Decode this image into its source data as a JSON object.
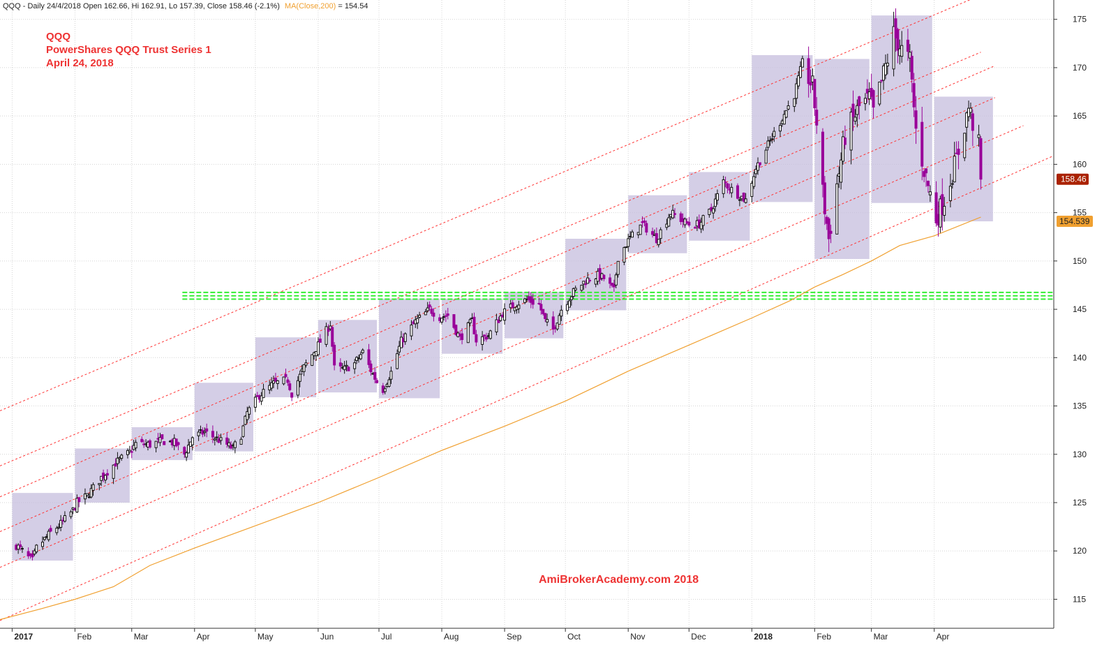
{
  "header": {
    "info": "QQQ - Daily 24/4/2018 Open 162.66, Hi 162.91, Lo 157.39, Close 158.46 (-2.1%)",
    "ma_label": "MA(Close,200)",
    "ma_value": " = 154.54"
  },
  "title": {
    "line1": "QQQ",
    "line2": "PowerShares QQQ Trust Series 1",
    "line3": "April 24, 2018"
  },
  "watermark": "AmiBrokerAcademy.com  2018",
  "badges": {
    "close": "158.46",
    "ma": "154.539"
  },
  "colors": {
    "up_candle": "#111111",
    "down_candle": "#990099",
    "channel": "#ff3333",
    "ma": "#f0a030",
    "support": "#33ee33",
    "box_fill": "#c6bedd",
    "close_badge": "#aa2200",
    "ma_badge": "#f0a030"
  },
  "chart_data": {
    "type": "candlestick",
    "symbol": "QQQ",
    "interval": "Daily",
    "ylim": [
      112,
      177
    ],
    "yticks": [
      115,
      120,
      125,
      130,
      135,
      140,
      145,
      150,
      155,
      160,
      165,
      170,
      175
    ],
    "xlim": [
      "2016-12-26",
      "2018-05-30"
    ],
    "months": [
      {
        "label": "2017",
        "date": "2017-01-01",
        "bold": true
      },
      {
        "label": "Feb",
        "date": "2017-02-01"
      },
      {
        "label": "Mar",
        "date": "2017-03-01"
      },
      {
        "label": "Apr",
        "date": "2017-04-01"
      },
      {
        "label": "May",
        "date": "2017-05-01"
      },
      {
        "label": "Jun",
        "date": "2017-06-01"
      },
      {
        "label": "Jul",
        "date": "2017-07-01"
      },
      {
        "label": "Aug",
        "date": "2017-08-01"
      },
      {
        "label": "Sep",
        "date": "2017-09-01"
      },
      {
        "label": "Oct",
        "date": "2017-10-01"
      },
      {
        "label": "Nov",
        "date": "2017-11-01"
      },
      {
        "label": "Dec",
        "date": "2017-12-01"
      },
      {
        "label": "2018",
        "date": "2018-01-01",
        "bold": true
      },
      {
        "label": "Feb",
        "date": "2018-02-01"
      },
      {
        "label": "Mar",
        "date": "2018-03-01"
      },
      {
        "label": "Apr",
        "date": "2018-04-01"
      }
    ],
    "monthly_ranges": [
      {
        "start": "2017-01-01",
        "end": "2017-01-31",
        "low": 119,
        "high": 126
      },
      {
        "start": "2017-02-01",
        "end": "2017-02-28",
        "low": 125,
        "high": 130.6
      },
      {
        "start": "2017-03-01",
        "end": "2017-03-31",
        "low": 129.4,
        "high": 132.8
      },
      {
        "start": "2017-04-01",
        "end": "2017-04-30",
        "low": 130.3,
        "high": 137.4
      },
      {
        "start": "2017-05-01",
        "end": "2017-05-31",
        "low": 135.9,
        "high": 142.1
      },
      {
        "start": "2017-06-01",
        "end": "2017-06-30",
        "low": 136.4,
        "high": 143.9
      },
      {
        "start": "2017-07-01",
        "end": "2017-07-31",
        "low": 135.8,
        "high": 146.1
      },
      {
        "start": "2017-08-01",
        "end": "2017-08-31",
        "low": 140.4,
        "high": 146.1
      },
      {
        "start": "2017-09-01",
        "end": "2017-09-30",
        "low": 142,
        "high": 146.8
      },
      {
        "start": "2017-10-01",
        "end": "2017-10-31",
        "low": 144.9,
        "high": 152.3
      },
      {
        "start": "2017-11-01",
        "end": "2017-11-30",
        "low": 150.8,
        "high": 156.8
      },
      {
        "start": "2017-12-01",
        "end": "2017-12-31",
        "low": 152.1,
        "high": 159.2
      },
      {
        "start": "2018-01-01",
        "end": "2018-01-31",
        "low": 156.1,
        "high": 171.3
      },
      {
        "start": "2018-02-01",
        "end": "2018-02-28",
        "low": 150.2,
        "high": 170.9
      },
      {
        "start": "2018-03-01",
        "end": "2018-03-31",
        "low": 156,
        "high": 175.4
      },
      {
        "start": "2018-04-01",
        "end": "2018-04-30",
        "low": 154.1,
        "high": 167
      }
    ],
    "channel_lines": [
      {
        "start": [
          "2016-12-26",
          134.5
        ],
        "end": [
          "2018-04-24",
          177.5
        ]
      },
      {
        "start": [
          "2016-12-26",
          128.8
        ],
        "end": [
          "2018-04-24",
          171.6
        ]
      },
      {
        "start": [
          "2016-12-26",
          125.6
        ],
        "end": [
          "2018-05-01",
          170.2
        ]
      },
      {
        "start": [
          "2016-12-26",
          122
        ],
        "end": [
          "2018-05-01",
          166.9
        ]
      },
      {
        "start": [
          "2016-12-26",
          118.3
        ],
        "end": [
          "2018-05-15",
          164
        ]
      },
      {
        "start": [
          "2016-12-26",
          112.8
        ],
        "end": [
          "2018-05-29",
          160.8
        ]
      }
    ],
    "support_level": {
      "value": 146.4,
      "start": "2017-03-26",
      "end": "2018-05-30"
    },
    "ma200": {
      "name": "MA(Close,200)",
      "points": [
        [
          "2016-12-26",
          112.9
        ],
        [
          "2017-01-15",
          114
        ],
        [
          "2017-02-01",
          115
        ],
        [
          "2017-02-20",
          116.3
        ],
        [
          "2017-03-10",
          118.5
        ],
        [
          "2017-04-01",
          120.3
        ],
        [
          "2017-05-01",
          122.6
        ],
        [
          "2017-06-01",
          125
        ],
        [
          "2017-07-01",
          127.6
        ],
        [
          "2017-08-01",
          130.4
        ],
        [
          "2017-09-01",
          132.9
        ],
        [
          "2017-10-01",
          135.5
        ],
        [
          "2017-11-01",
          138.6
        ],
        [
          "2017-12-01",
          141.3
        ],
        [
          "2018-01-01",
          144.1
        ],
        [
          "2018-01-20",
          145.9
        ],
        [
          "2018-02-01",
          147.3
        ],
        [
          "2018-02-15",
          148.6
        ],
        [
          "2018-03-01",
          150
        ],
        [
          "2018-03-15",
          151.6
        ],
        [
          "2018-04-01",
          152.6
        ],
        [
          "2018-04-24",
          154.54
        ]
      ]
    },
    "last": {
      "date": "2018-04-24",
      "open": 162.66,
      "high": 162.91,
      "low": 157.39,
      "close": 158.46,
      "change_pct": -2.1,
      "ma200": 154.54
    },
    "close_path": [
      [
        "2017-01-03",
        120.6
      ],
      [
        "2017-01-05",
        120.2
      ],
      [
        "2017-01-09",
        119.3
      ],
      [
        "2017-01-11",
        119.0
      ],
      [
        "2017-01-13",
        120.3
      ],
      [
        "2017-01-17",
        121.2
      ],
      [
        "2017-01-20",
        121.9
      ],
      [
        "2017-01-25",
        122.8
      ],
      [
        "2017-01-31",
        124.2
      ],
      [
        "2017-02-02",
        125.0
      ],
      [
        "2017-02-07",
        125.7
      ],
      [
        "2017-02-14",
        127.6
      ],
      [
        "2017-02-21",
        129.1
      ],
      [
        "2017-02-28",
        130.2
      ],
      [
        "2017-03-03",
        131.1
      ],
      [
        "2017-03-10",
        131.0
      ],
      [
        "2017-03-16",
        131.4
      ],
      [
        "2017-03-22",
        131.2
      ],
      [
        "2017-03-27",
        130.0
      ],
      [
        "2017-03-31",
        131.8
      ],
      [
        "2017-04-06",
        132.3
      ],
      [
        "2017-04-12",
        131.6
      ],
      [
        "2017-04-17",
        131.0
      ],
      [
        "2017-04-20",
        130.6
      ],
      [
        "2017-04-24",
        132.0
      ],
      [
        "2017-04-27",
        134.3
      ],
      [
        "2017-05-03",
        136.1
      ],
      [
        "2017-05-10",
        137.3
      ],
      [
        "2017-05-17",
        137.7
      ],
      [
        "2017-05-19",
        136.3
      ],
      [
        "2017-05-25",
        139.0
      ],
      [
        "2017-06-01",
        141.3
      ],
      [
        "2017-06-07",
        143.5
      ],
      [
        "2017-06-09",
        138.9
      ],
      [
        "2017-06-14",
        138.8
      ],
      [
        "2017-06-19",
        139.4
      ],
      [
        "2017-06-23",
        140.6
      ],
      [
        "2017-06-27",
        138.7
      ],
      [
        "2017-06-30",
        137.5
      ],
      [
        "2017-07-03",
        136.7
      ],
      [
        "2017-07-07",
        138.5
      ],
      [
        "2017-07-12",
        141.7
      ],
      [
        "2017-07-19",
        143.7
      ],
      [
        "2017-07-26",
        145.0
      ],
      [
        "2017-07-31",
        144.2
      ],
      [
        "2017-08-04",
        144.4
      ],
      [
        "2017-08-10",
        142.0
      ],
      [
        "2017-08-16",
        143.8
      ],
      [
        "2017-08-18",
        141.8
      ],
      [
        "2017-08-24",
        142.3
      ],
      [
        "2017-08-31",
        144.6
      ],
      [
        "2017-09-06",
        145.5
      ],
      [
        "2017-09-12",
        146.0
      ],
      [
        "2017-09-18",
        145.5
      ],
      [
        "2017-09-21",
        143.8
      ],
      [
        "2017-09-25",
        142.9
      ],
      [
        "2017-09-29",
        145.0
      ],
      [
        "2017-10-05",
        146.8
      ],
      [
        "2017-10-11",
        148.0
      ],
      [
        "2017-10-17",
        148.5
      ],
      [
        "2017-10-20",
        148.2
      ],
      [
        "2017-10-25",
        146.9
      ],
      [
        "2017-10-27",
        150.4
      ],
      [
        "2017-11-02",
        152.4
      ],
      [
        "2017-11-08",
        153.8
      ],
      [
        "2017-11-15",
        152.3
      ],
      [
        "2017-11-22",
        155.0
      ],
      [
        "2017-11-29",
        154.0
      ],
      [
        "2017-12-01",
        153.8
      ],
      [
        "2017-12-06",
        153.8
      ],
      [
        "2017-12-12",
        155.3
      ],
      [
        "2017-12-18",
        158.2
      ],
      [
        "2017-12-22",
        157.4
      ],
      [
        "2017-12-29",
        156.3
      ],
      [
        "2018-01-03",
        159.6
      ],
      [
        "2018-01-09",
        162.0
      ],
      [
        "2018-01-16",
        164.8
      ],
      [
        "2018-01-22",
        167.2
      ],
      [
        "2018-01-26",
        170.5
      ],
      [
        "2018-01-31",
        168.0
      ],
      [
        "2018-02-02",
        164.4
      ],
      [
        "2018-02-05",
        157.0
      ],
      [
        "2018-02-08",
        152.3
      ],
      [
        "2018-02-12",
        157.9
      ],
      [
        "2018-02-16",
        163.0
      ],
      [
        "2018-02-23",
        165.9
      ],
      [
        "2018-02-28",
        166.8
      ],
      [
        "2018-03-02",
        165.3
      ],
      [
        "2018-03-09",
        170.9
      ],
      [
        "2018-03-12",
        173.5
      ],
      [
        "2018-03-16",
        171.8
      ],
      [
        "2018-03-20",
        170.7
      ],
      [
        "2018-03-23",
        163.5
      ],
      [
        "2018-03-27",
        159.5
      ],
      [
        "2018-04-02",
        154.4
      ],
      [
        "2018-04-06",
        156.4
      ],
      [
        "2018-04-12",
        160.5
      ],
      [
        "2018-04-18",
        165.9
      ],
      [
        "2018-04-23",
        161.9
      ],
      [
        "2018-04-24",
        158.46
      ]
    ]
  }
}
